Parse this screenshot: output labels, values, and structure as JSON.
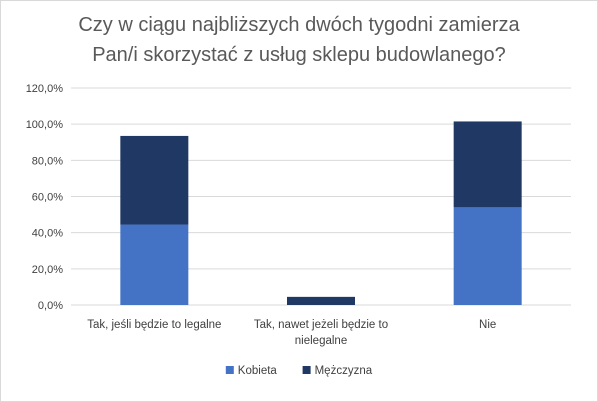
{
  "chart_data": {
    "type": "bar",
    "stacked": true,
    "title_lines": [
      "Czy w ciągu najbliższych dwóch tygodni zamierza",
      "Pan/i skorzystać z usług sklepu budowlanego?"
    ],
    "categories": [
      [
        "Tak, jeśli będzie to legalne"
      ],
      [
        "Tak, nawet jeżeli będzie to",
        "nielegalne"
      ],
      [
        "Nie"
      ]
    ],
    "series": [
      {
        "name": "Kobieta",
        "color": "#4472c4",
        "values": [
          44.5,
          0.0,
          54.0
        ]
      },
      {
        "name": "Mężczyzna",
        "color": "#203864",
        "values": [
          49.0,
          4.5,
          47.5
        ]
      }
    ],
    "ylim": [
      0,
      120
    ],
    "yticks": [
      "0,0%",
      "20,0%",
      "40,0%",
      "60,0%",
      "80,0%",
      "100,0%",
      "120,0%"
    ],
    "grid": true,
    "legend_position": "bottom",
    "gridline_color": "#d9d9d9"
  }
}
